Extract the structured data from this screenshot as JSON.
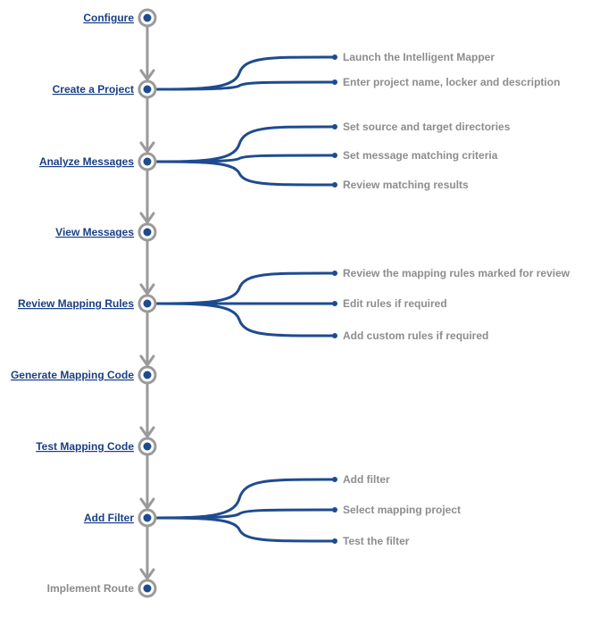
{
  "steps": [
    {
      "label": "Configure",
      "link": true,
      "tasks": []
    },
    {
      "label": "Create a Project",
      "link": true,
      "tasks": [
        "Launch the Intelligent Mapper",
        "Enter project name, locker and description"
      ]
    },
    {
      "label": "Analyze Messages",
      "link": true,
      "tasks": [
        "Set source and target directories",
        "Set message matching criteria",
        "Review matching results"
      ]
    },
    {
      "label": "View Messages",
      "link": true,
      "tasks": []
    },
    {
      "label": "Review Mapping Rules",
      "link": true,
      "tasks": [
        "Review the mapping rules marked for review",
        "Edit rules if required",
        "Add custom rules if required"
      ]
    },
    {
      "label": "Generate Mapping Code",
      "link": true,
      "tasks": []
    },
    {
      "label": "Test Mapping Code",
      "link": true,
      "tasks": []
    },
    {
      "label": "Add Filter",
      "link": true,
      "tasks": [
        "Add filter",
        "Select mapping project",
        "Test the filter"
      ]
    },
    {
      "label": "Implement Route",
      "link": false,
      "tasks": []
    }
  ],
  "colors": {
    "link": "#1a3f85",
    "node": "#1e4b8f",
    "line": "#9a9a9a",
    "task_text": "#8d8d8d"
  }
}
